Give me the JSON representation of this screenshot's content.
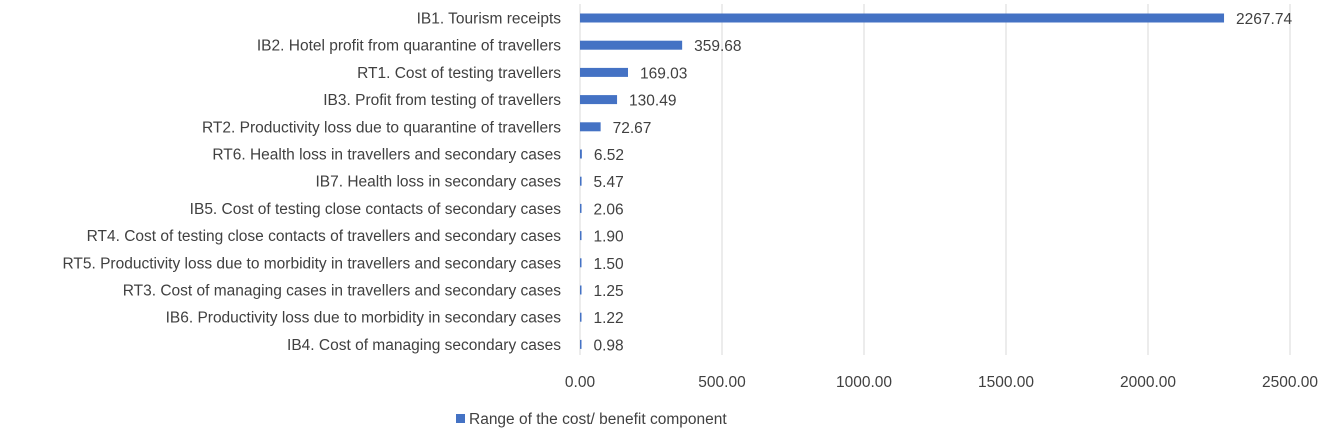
{
  "chart_data": {
    "type": "bar",
    "orientation": "horizontal",
    "categories": [
      "IB1. Tourism receipts",
      "IB2. Hotel profit from quarantine of travellers",
      "RT1. Cost of testing travellers",
      "IB3. Profit from testing of travellers",
      "RT2. Productivity loss due to quarantine of travellers",
      "RT6. Health loss in travellers and secondary cases",
      "IB7. Health loss in secondary cases",
      "IB5. Cost of testing close contacts of secondary cases",
      "RT4. Cost of testing close contacts of travellers and secondary cases",
      "RT5. Productivity loss due to morbidity in travellers and secondary cases",
      "RT3. Cost of managing cases in travellers and secondary cases",
      "IB6. Productivity loss due to morbidity in secondary cases",
      "IB4. Cost of managing secondary cases"
    ],
    "series": [
      {
        "name": "Range of the cost/ benefit component",
        "values": [
          2267.74,
          359.68,
          169.03,
          130.49,
          72.67,
          6.52,
          5.47,
          2.06,
          1.9,
          1.5,
          1.25,
          1.22,
          0.98
        ],
        "labels": [
          "2267.74",
          "359.68",
          "169.03",
          "130.49",
          "72.67",
          "6.52",
          "5.47",
          "2.06",
          "1.90",
          "1.50",
          "1.25",
          "1.22",
          "0.98"
        ],
        "color": "#4472C4"
      }
    ],
    "xlim": [
      0,
      2500
    ],
    "x_ticks": [
      "0.00",
      "500.00",
      "1000.00",
      "1500.00",
      "2000.00",
      "2500.00"
    ],
    "x_tick_values": [
      0,
      500,
      1000,
      1500,
      2000,
      2500
    ],
    "grid": "vertical",
    "gridline_color": "#d9d9d9",
    "legend_position": "bottom-left",
    "title": "",
    "xlabel": "",
    "ylabel": ""
  }
}
